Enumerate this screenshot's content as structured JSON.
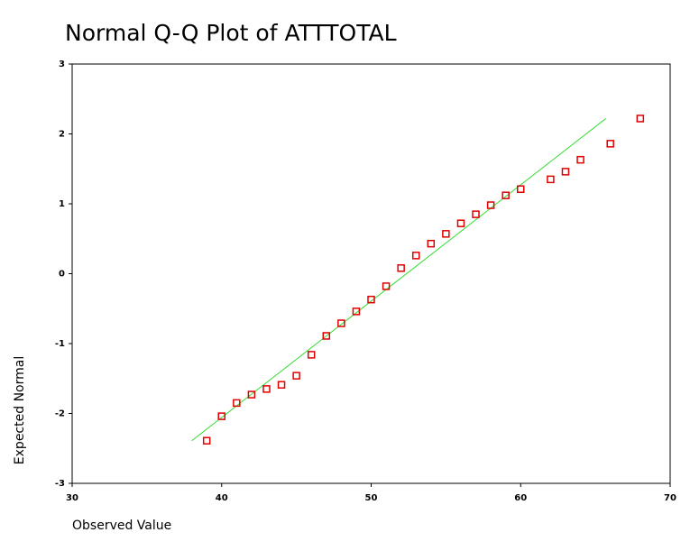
{
  "chart_data": {
    "type": "scatter",
    "title": "Normal Q-Q Plot of ATTTOTAL",
    "xlabel": "Observed Value",
    "ylabel": "Expected Normal",
    "x": [
      39,
      40,
      41,
      42,
      43,
      44,
      45,
      46,
      47,
      48,
      49,
      50,
      51,
      52,
      53,
      54,
      55,
      56,
      57,
      58,
      59,
      60,
      62,
      63,
      64,
      66,
      68
    ],
    "values": [
      -2.39,
      -2.04,
      -1.85,
      -1.73,
      -1.65,
      -1.59,
      -1.46,
      -1.16,
      -0.89,
      -0.71,
      -0.54,
      -0.37,
      -0.18,
      0.08,
      0.26,
      0.43,
      0.57,
      0.72,
      0.85,
      0.98,
      1.12,
      1.21,
      1.35,
      1.46,
      1.63,
      1.86,
      2.22
    ],
    "color": "#e00000",
    "reference_line": {
      "x": [
        38,
        65.7
      ],
      "values": [
        -2.39,
        2.22
      ],
      "color": "#33dd33"
    },
    "xlim": [
      30,
      70
    ],
    "xticks": [
      30,
      40,
      50,
      60,
      70
    ],
    "ylim": [
      -3,
      3
    ],
    "yticks": [
      -3,
      -2,
      -1,
      0,
      1,
      2,
      3
    ]
  }
}
